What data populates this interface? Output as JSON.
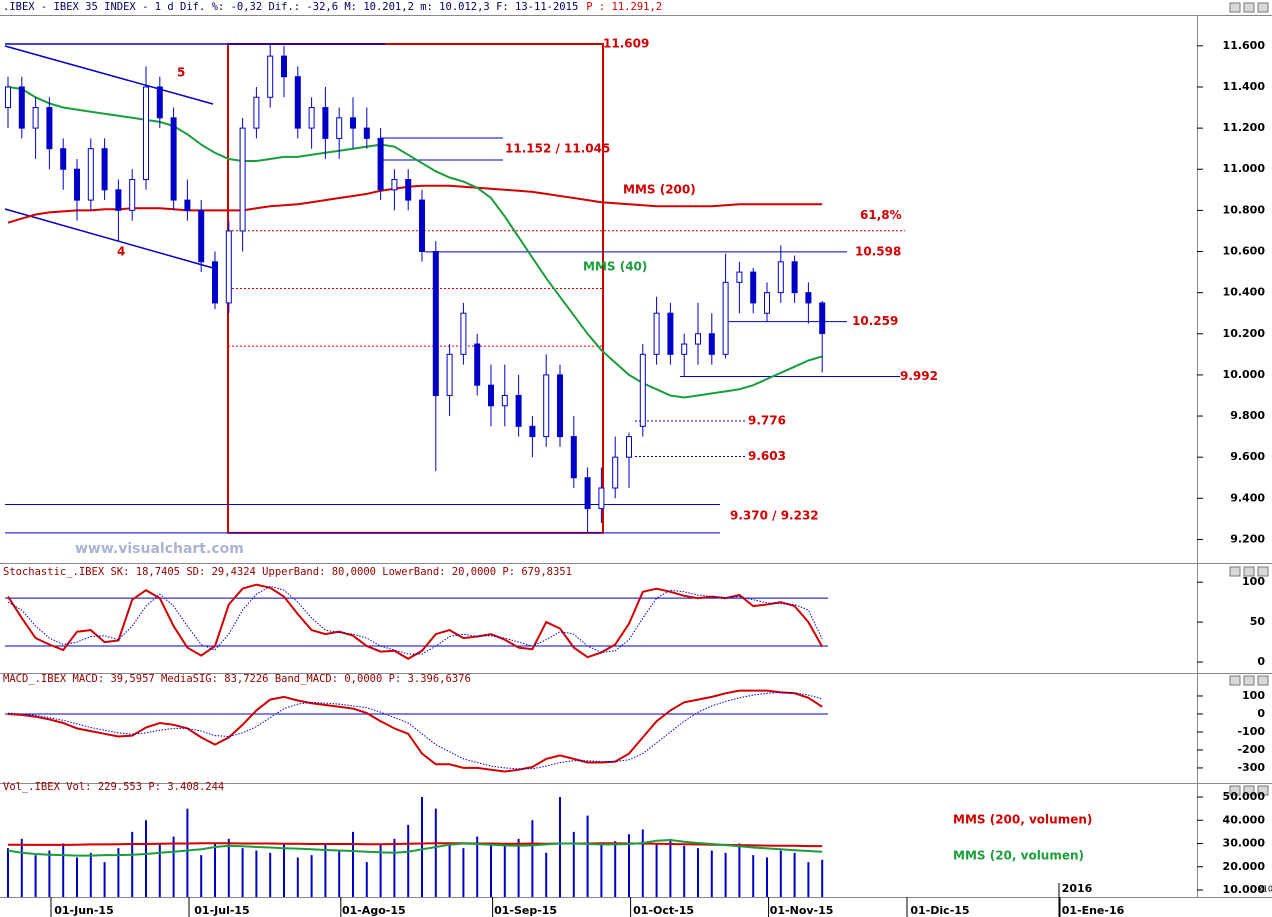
{
  "chart_data": [
    {
      "type": "candlestick",
      "title": ".IBEX - IBEX 35 INDEX -   1 d Dif. %: -0,32 Dif.: -32,6 M: 10.201,2 m: 10.012,3 F: 13-11-2015",
      "subtitle": "P : 11.291,2",
      "watermark": "www.visualchart.com",
      "color": "#0000c8",
      "categories": [
        null,
        null,
        null,
        null,
        null,
        "01-Jun-15",
        null,
        null,
        null,
        null,
        null,
        null,
        null,
        null,
        null,
        "01-Jul-15",
        null,
        null,
        null,
        null,
        null,
        null,
        null,
        null,
        null,
        null,
        "01-Ago-15",
        null,
        null,
        null,
        null,
        null,
        null,
        null,
        null,
        null,
        null,
        "01-Sep-15",
        null,
        null,
        null,
        null,
        null,
        null,
        null,
        null,
        null,
        "01-Oct-15",
        null,
        null,
        null,
        null,
        null,
        null,
        null,
        null,
        null,
        "01-Nov-15",
        null,
        null
      ],
      "x_axis_extra": [
        "01-Dic-15",
        "01-Ene-16",
        "2016"
      ],
      "open": [
        11300,
        11400,
        11200,
        11300,
        11100,
        11000,
        10850,
        11100,
        10900,
        10800,
        10950,
        11400,
        11250,
        10850,
        10800,
        10550,
        10350,
        10700,
        11200,
        11350,
        11550,
        11450,
        11200,
        11300,
        11150,
        11250,
        11200,
        11150,
        10900,
        10950,
        10850,
        10600,
        9900,
        10100,
        10150,
        9950,
        9850,
        9900,
        9750,
        9700,
        10000,
        9700,
        9500,
        9350,
        9450,
        9600,
        9750,
        10100,
        10300,
        10100,
        10150,
        10200,
        10100,
        10450,
        10500,
        10300,
        10400,
        10550,
        10400,
        10350
      ],
      "high": [
        11450,
        11450,
        11350,
        11350,
        11150,
        11050,
        11150,
        11150,
        10950,
        11000,
        11500,
        11450,
        11300,
        10950,
        10850,
        10600,
        10750,
        11250,
        11400,
        11609,
        11600,
        11500,
        11350,
        11400,
        11300,
        11350,
        11300,
        11200,
        11000,
        11000,
        10900,
        10650,
        10150,
        10350,
        10200,
        10050,
        10050,
        10000,
        9800,
        10100,
        10050,
        9800,
        9550,
        9550,
        9700,
        9720,
        10150,
        10380,
        10350,
        10200,
        10350,
        10300,
        10590,
        10550,
        10520,
        10450,
        10630,
        10580,
        10450,
        10360
      ],
      "low": [
        11200,
        11150,
        11050,
        11000,
        10900,
        10750,
        10800,
        10850,
        10650,
        10750,
        10900,
        11200,
        10800,
        10750,
        10500,
        10320,
        10300,
        10600,
        11150,
        11300,
        11350,
        11150,
        11100,
        11050,
        11050,
        11100,
        11100,
        10850,
        10800,
        10800,
        10550,
        9532,
        9800,
        10050,
        9900,
        9750,
        9750,
        9700,
        9600,
        9650,
        9650,
        9450,
        9232,
        9280,
        9400,
        9450,
        9700,
        10050,
        10050,
        9990,
        10050,
        10050,
        10080,
        10300,
        10300,
        10260,
        10350,
        10350,
        10250,
        10012
      ],
      "close": [
        11400,
        11200,
        11300,
        11100,
        11000,
        10850,
        11100,
        10900,
        10800,
        10950,
        11400,
        11250,
        10850,
        10800,
        10550,
        10350,
        10700,
        11200,
        11350,
        11550,
        11450,
        11200,
        11300,
        11150,
        11250,
        11200,
        11150,
        10900,
        10950,
        10850,
        10600,
        9900,
        10100,
        10300,
        9950,
        9850,
        9900,
        9750,
        9700,
        10000,
        9700,
        9500,
        9350,
        9450,
        9600,
        9700,
        10100,
        10300,
        10100,
        10150,
        10200,
        10100,
        10450,
        10500,
        10350,
        10400,
        10550,
        10400,
        10350,
        10201
      ],
      "series": [
        {
          "name": "MMS (200)",
          "color": "#d00000",
          "values": [
            10740,
            10760,
            10780,
            10790,
            10795,
            10800,
            10800,
            10805,
            10805,
            10810,
            10810,
            10810,
            10805,
            10800,
            10800,
            10800,
            10800,
            10800,
            10810,
            10820,
            10825,
            10830,
            10840,
            10850,
            10860,
            10870,
            10880,
            10895,
            10905,
            10915,
            10920,
            10920,
            10920,
            10915,
            10910,
            10905,
            10900,
            10895,
            10890,
            10880,
            10870,
            10860,
            10850,
            10840,
            10835,
            10830,
            10825,
            10820,
            10820,
            10820,
            10820,
            10820,
            10825,
            10830,
            10830,
            10830,
            10830,
            10830,
            10830,
            10830
          ]
        },
        {
          "name": "MMS (40)",
          "color": "#1a9e3a",
          "values": [
            11400,
            11390,
            11350,
            11320,
            11300,
            11290,
            11280,
            11270,
            11260,
            11250,
            11240,
            11230,
            11210,
            11170,
            11120,
            11080,
            11050,
            11040,
            11040,
            11050,
            11060,
            11060,
            11070,
            11080,
            11090,
            11100,
            11110,
            11120,
            11110,
            11070,
            11030,
            10990,
            10960,
            10940,
            10910,
            10860,
            10770,
            10670,
            10570,
            10470,
            10380,
            10290,
            10200,
            10120,
            10060,
            10000,
            9960,
            9930,
            9900,
            9890,
            9900,
            9910,
            9920,
            9930,
            9950,
            9980,
            10010,
            10040,
            10070,
            10090
          ]
        }
      ],
      "annotations": [
        {
          "label": "11.609",
          "value": 11609
        },
        {
          "label": "11.152 / 11.045",
          "values": [
            11152,
            11045
          ]
        },
        {
          "label": "10.598",
          "value": 10598
        },
        {
          "label": "10.259",
          "value": 10259
        },
        {
          "label": "9.992",
          "value": 9992
        },
        {
          "label": "9.776",
          "value": 9776
        },
        {
          "label": "9.603",
          "value": 9603
        },
        {
          "label": "9.370 / 9.232",
          "values": [
            9370,
            9232
          ]
        },
        {
          "label": "61,8%",
          "value": 10701
        }
      ],
      "fibonacci_levels": [
        10420,
        10140
      ],
      "wave_labels": [
        "5",
        "4"
      ],
      "ylim": [
        9100,
        11750
      ],
      "yticks": [
        {
          "value": 9200,
          "label": "9.200"
        },
        {
          "value": 9400,
          "label": "9.400"
        },
        {
          "value": 9600,
          "label": "9.600"
        },
        {
          "value": 9800,
          "label": "9.800"
        },
        {
          "value": 10000,
          "label": "10.000"
        },
        {
          "value": 10200,
          "label": "10.200"
        },
        {
          "value": 10400,
          "label": "10.400"
        },
        {
          "value": 10600,
          "label": "10.600"
        },
        {
          "value": 10800,
          "label": "10.800"
        },
        {
          "value": 11000,
          "label": "11.000"
        },
        {
          "value": 11200,
          "label": "11.200"
        },
        {
          "value": 11400,
          "label": "11.400"
        },
        {
          "value": 11600,
          "label": "11.600"
        }
      ]
    },
    {
      "type": "line",
      "title": "Stochastic_.IBEX SK: 18,7405 SD: 29,4324 UpperBand: 80,0000 LowerBand: 20,0000 P: 679,8351",
      "bands": [
        80,
        20
      ],
      "band_color": "#0000c8",
      "series": [
        {
          "color": "#d00000",
          "values": [
            82,
            55,
            30,
            22,
            15,
            38,
            40,
            25,
            27,
            78,
            90,
            80,
            45,
            18,
            8,
            20,
            72,
            92,
            97,
            93,
            82,
            60,
            40,
            35,
            38,
            33,
            20,
            13,
            14,
            4,
            14,
            35,
            40,
            30,
            32,
            35,
            28,
            18,
            16,
            50,
            42,
            18,
            6,
            12,
            22,
            48,
            88,
            92,
            88,
            83,
            80,
            82,
            80,
            84,
            70,
            72,
            75,
            70,
            50,
            19
          ]
        },
        {
          "color": "#0000c8",
          "values": [
            75,
            65,
            45,
            30,
            22,
            25,
            32,
            33,
            28,
            45,
            70,
            85,
            70,
            45,
            22,
            15,
            35,
            65,
            85,
            95,
            90,
            75,
            55,
            40,
            37,
            35,
            30,
            20,
            15,
            10,
            10,
            20,
            32,
            35,
            32,
            33,
            30,
            25,
            20,
            28,
            38,
            35,
            20,
            12,
            14,
            28,
            55,
            80,
            90,
            88,
            84,
            82,
            81,
            82,
            78,
            74,
            73,
            72,
            65,
            29
          ]
        }
      ],
      "ylim": [
        -10,
        109
      ],
      "yticks": [
        0,
        50,
        100
      ]
    },
    {
      "type": "line",
      "title": "MACD_.IBEX MACD: 39,5957 MediaSIG: 83,7226 Band_MACD: 0,0000 P: 3.396,6376",
      "bands": [
        0
      ],
      "band_color": "#0000c8",
      "series": [
        {
          "color": "#d00000",
          "values": [
            0,
            -5,
            -15,
            -30,
            -50,
            -80,
            -95,
            -110,
            -125,
            -120,
            -75,
            -50,
            -60,
            -80,
            -130,
            -170,
            -130,
            -60,
            20,
            80,
            95,
            75,
            60,
            50,
            40,
            30,
            5,
            -40,
            -80,
            -110,
            -220,
            -280,
            -280,
            -300,
            -300,
            -310,
            -320,
            -310,
            -295,
            -250,
            -230,
            -250,
            -270,
            -270,
            -265,
            -220,
            -130,
            -40,
            20,
            65,
            80,
            95,
            115,
            130,
            130,
            130,
            120,
            115,
            90,
            40
          ]
        },
        {
          "color": "#0000c8",
          "values": [
            5,
            0,
            -8,
            -20,
            -35,
            -55,
            -75,
            -90,
            -105,
            -112,
            -105,
            -90,
            -80,
            -80,
            -95,
            -120,
            -125,
            -105,
            -70,
            -20,
            30,
            55,
            65,
            60,
            55,
            45,
            35,
            10,
            -20,
            -50,
            -110,
            -170,
            -210,
            -250,
            -270,
            -290,
            -300,
            -305,
            -305,
            -290,
            -270,
            -260,
            -260,
            -265,
            -265,
            -255,
            -220,
            -160,
            -100,
            -40,
            10,
            45,
            70,
            90,
            105,
            115,
            120,
            118,
            105,
            84
          ]
        }
      ],
      "ylim": [
        -367,
        161
      ],
      "yticks": [
        -300,
        -200,
        -100,
        0,
        100
      ]
    },
    {
      "type": "bar",
      "title": "Vol_.IBEX Vol: 229.553 P: 3.408.244",
      "unit_label": "x10",
      "color": "#0000c8",
      "values": [
        28000,
        32000,
        25000,
        27000,
        30000,
        24000,
        26000,
        22000,
        28000,
        35000,
        40000,
        30000,
        33000,
        45000,
        25000,
        30000,
        32000,
        28000,
        27000,
        26000,
        30000,
        24000,
        25000,
        30000,
        27000,
        35000,
        22000,
        30000,
        32000,
        38000,
        50000,
        45000,
        30000,
        28000,
        33000,
        30000,
        29000,
        32000,
        40000,
        26000,
        50000,
        35000,
        42000,
        30000,
        31000,
        34000,
        36000,
        30000,
        32000,
        29000,
        28000,
        27000,
        26000,
        30000,
        25000,
        24000,
        27000,
        26000,
        22000,
        23000
      ],
      "series": [
        {
          "name": "MMS (200, volumen)",
          "color": "#d00000",
          "values": [
            29500,
            29500,
            29400,
            29400,
            29400,
            29500,
            29600,
            29600,
            29700,
            29800,
            29800,
            29900,
            30000,
            30000,
            30100,
            30100,
            30100,
            30000,
            30000,
            30000,
            29900,
            29900,
            29800,
            29800,
            29800,
            29800,
            29700,
            29700,
            29800,
            29900,
            30000,
            30100,
            30100,
            30100,
            30000,
            30000,
            29900,
            29900,
            30000,
            29900,
            30000,
            30000,
            30000,
            30100,
            30100,
            30000,
            30000,
            29900,
            29800,
            29700,
            29600,
            29500,
            29400,
            29300,
            29200,
            29100,
            29000,
            29000,
            28900,
            28900
          ]
        },
        {
          "name": "MMS (20, volumen)",
          "color": "#1a9e3a",
          "values": [
            27000,
            26000,
            25500,
            25200,
            25000,
            24800,
            24800,
            25000,
            25000,
            25200,
            25500,
            26000,
            26500,
            27000,
            27500,
            28500,
            29000,
            28800,
            28500,
            28300,
            28000,
            27800,
            27500,
            27200,
            27000,
            26800,
            26500,
            26200,
            26000,
            26500,
            27500,
            28500,
            29500,
            30000,
            29800,
            29500,
            29200,
            29000,
            29200,
            29600,
            30000,
            30000,
            29800,
            29600,
            29600,
            29800,
            30200,
            31200,
            31500,
            30800,
            30200,
            29800,
            29300,
            28800,
            28300,
            27900,
            27500,
            27100,
            26800,
            26500
          ]
        }
      ],
      "ylim": [
        7000,
        52150
      ],
      "yticks": [
        {
          "value": 10000,
          "label": "10.000"
        },
        {
          "value": 20000,
          "label": "20.000"
        },
        {
          "value": 30000,
          "label": "30.000"
        },
        {
          "value": 40000,
          "label": "40.000"
        },
        {
          "value": 50000,
          "label": "50.000"
        }
      ]
    }
  ]
}
